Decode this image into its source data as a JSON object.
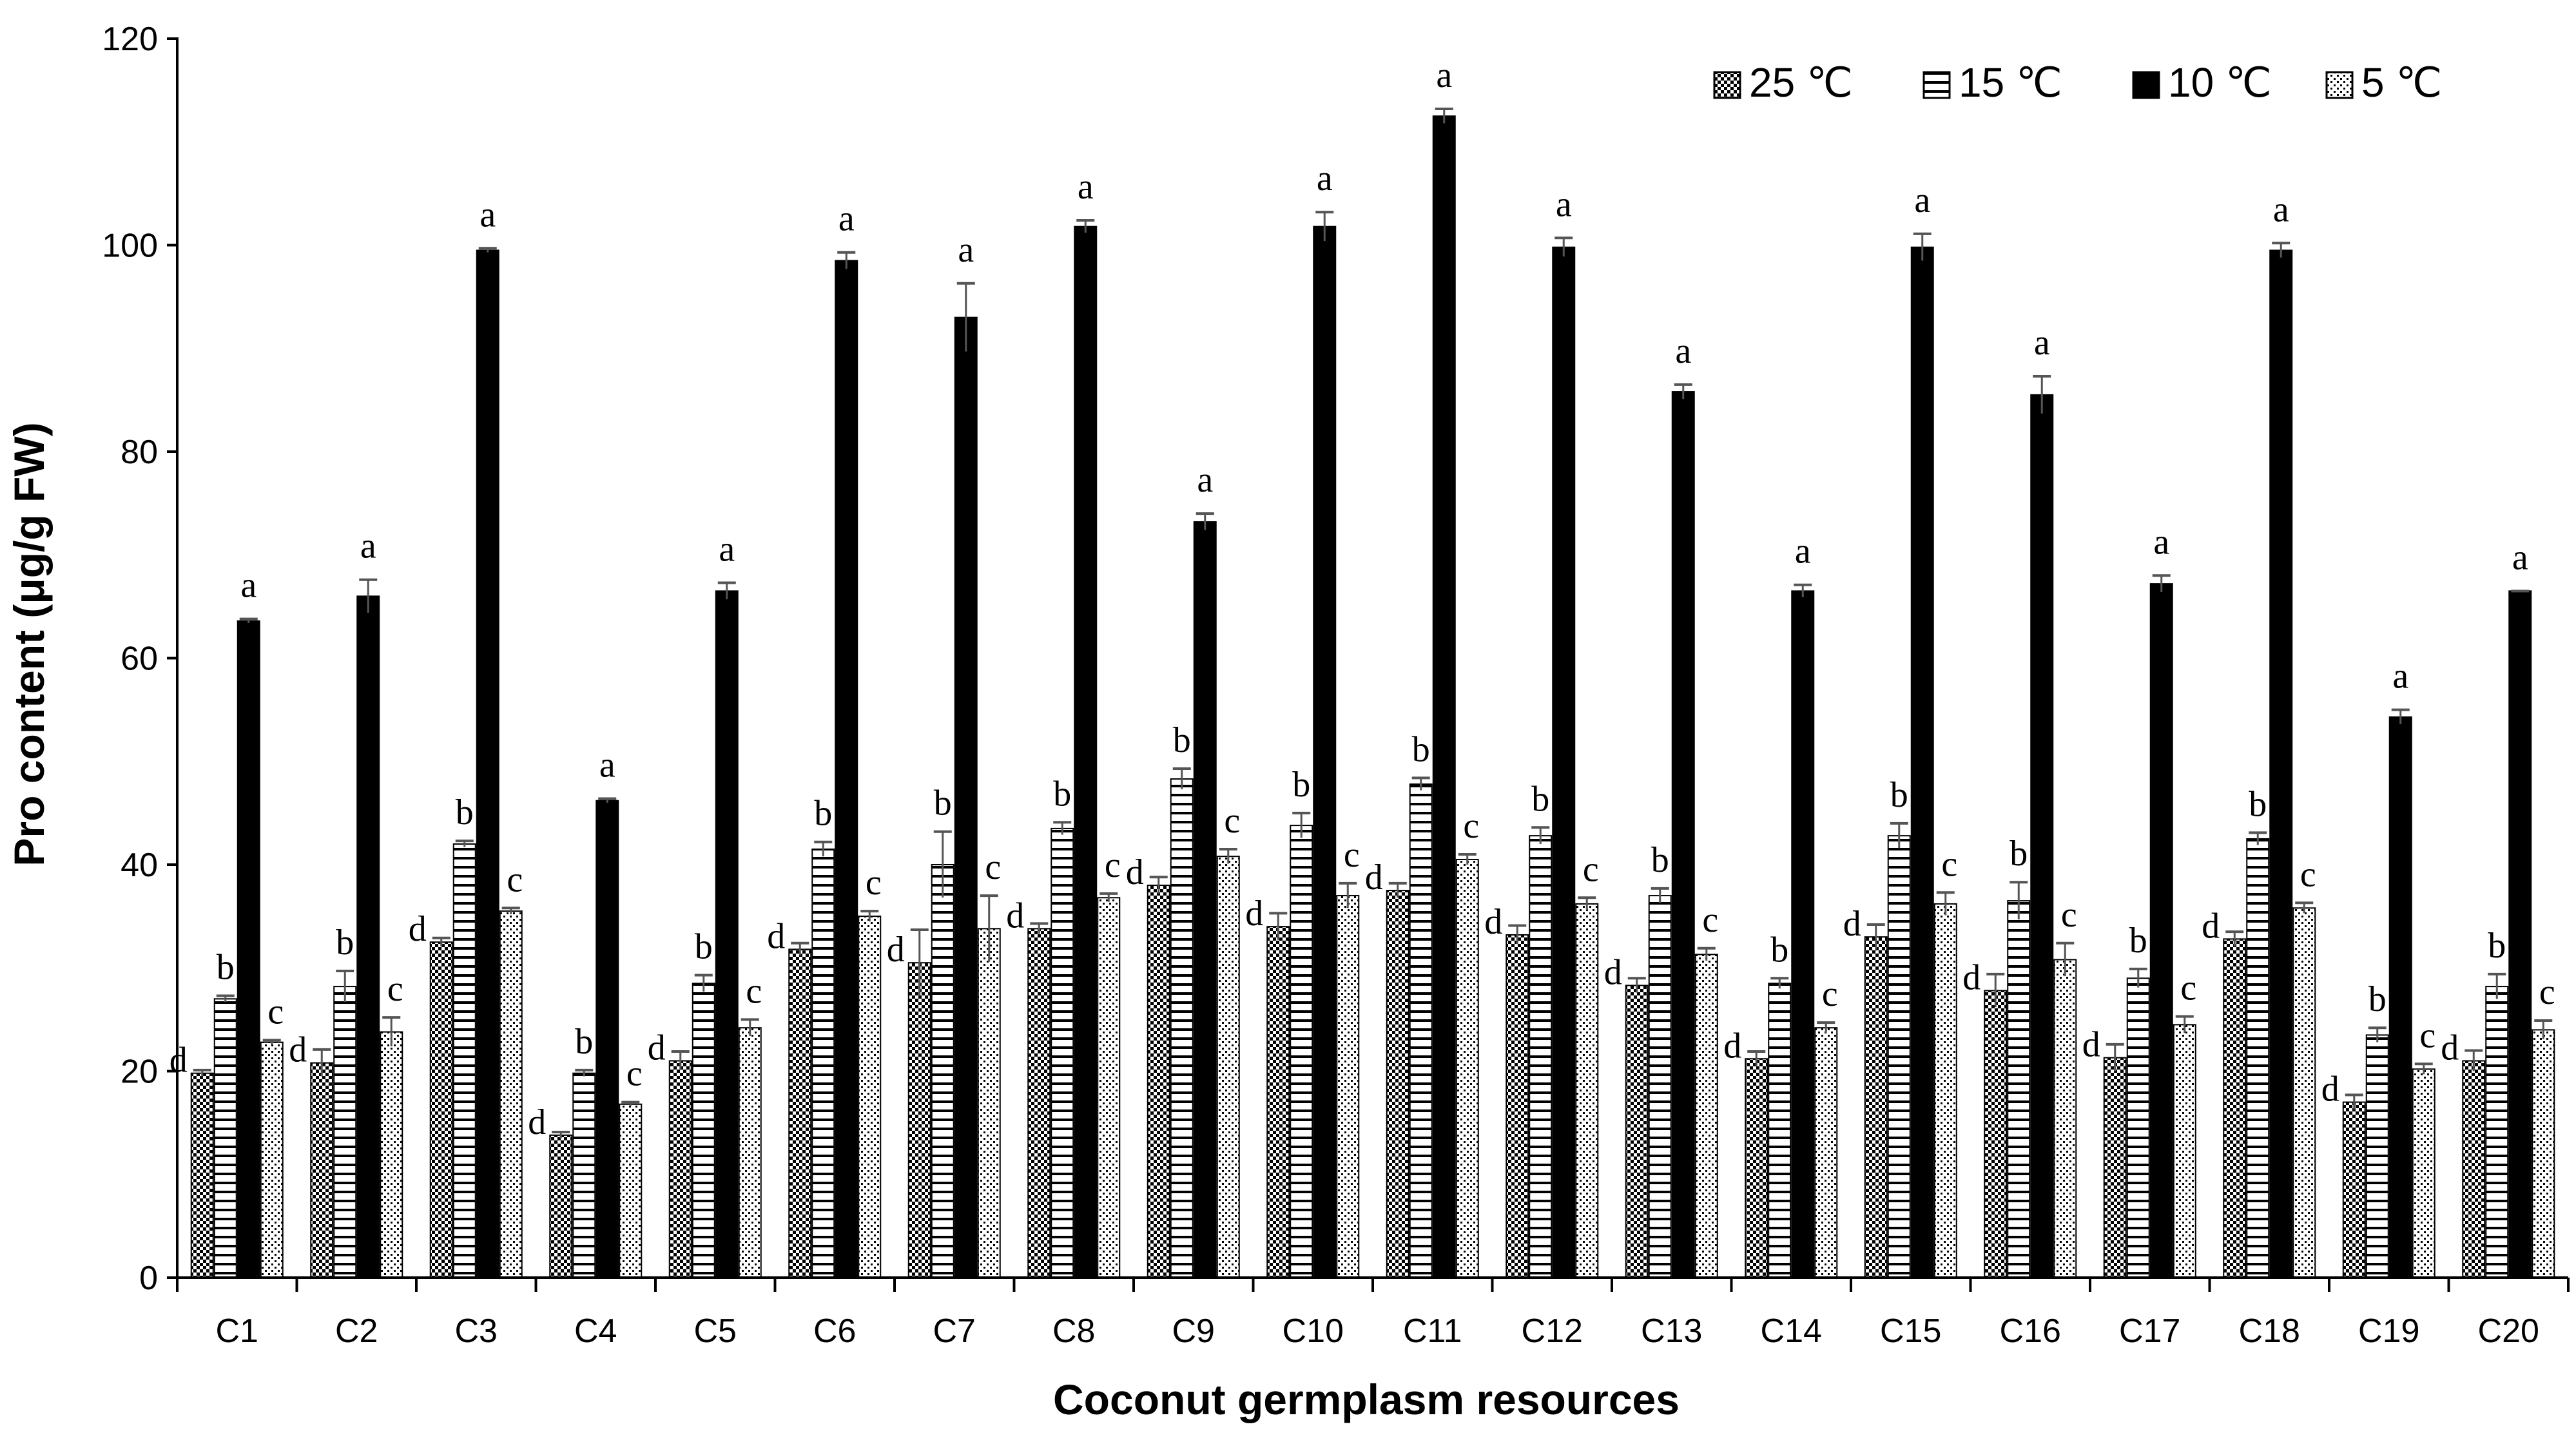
{
  "chart_data": {
    "type": "bar",
    "title": "",
    "xlabel": "Coconut germplasm resources",
    "ylabel": "Pro content (μg/g FW)",
    "ylim": [
      0,
      120
    ],
    "yticks": [
      0,
      20,
      40,
      60,
      80,
      100,
      120
    ],
    "grid": false,
    "legend_position": "top-right",
    "categories": [
      "C1",
      "C2",
      "C3",
      "C4",
      "C5",
      "C6",
      "C7",
      "C8",
      "C9",
      "C10",
      "C11",
      "C12",
      "C13",
      "C14",
      "C15",
      "C16",
      "C17",
      "C18",
      "C19",
      "C20"
    ],
    "series": [
      {
        "name": "25 ℃",
        "pattern": "checker",
        "values": [
          19.8,
          20.8,
          32.5,
          13.8,
          21.0,
          31.8,
          30.5,
          33.8,
          38.0,
          34.0,
          37.5,
          33.2,
          28.3,
          21.2,
          33.0,
          27.8,
          21.3,
          32.8,
          17.0,
          21.0
        ],
        "errors": [
          0.3,
          1.3,
          0.4,
          0.3,
          0.9,
          0.6,
          3.2,
          0.5,
          0.8,
          1.3,
          0.7,
          0.9,
          0.7,
          0.7,
          1.2,
          1.6,
          1.3,
          0.7,
          0.7,
          1.0
        ],
        "letters": [
          "d",
          "d",
          "d",
          "d",
          "d",
          "d",
          "d",
          "d",
          "d",
          "d",
          "d",
          "d",
          "d",
          "d",
          "d",
          "d",
          "d",
          "d",
          "d",
          "d"
        ]
      },
      {
        "name": "15 ℃",
        "pattern": "hlines",
        "values": [
          27.0,
          28.2,
          42.0,
          19.8,
          28.5,
          41.5,
          40.0,
          43.5,
          48.3,
          43.8,
          47.8,
          42.8,
          37.0,
          28.5,
          42.8,
          36.5,
          29.0,
          42.5,
          23.5,
          28.2
        ],
        "errors": [
          0.3,
          1.5,
          0.3,
          0.3,
          0.8,
          0.7,
          3.2,
          0.6,
          1.0,
          1.2,
          0.6,
          0.8,
          0.7,
          0.5,
          1.2,
          1.8,
          0.9,
          0.6,
          0.7,
          1.2
        ],
        "letters": [
          "b",
          "b",
          "b",
          "b",
          "b",
          "b",
          "b",
          "b",
          "b",
          "b",
          "b",
          "b",
          "b",
          "b",
          "b",
          "b",
          "b",
          "b",
          "b",
          "b"
        ]
      },
      {
        "name": "10 ℃",
        "pattern": "solid",
        "values": [
          63.6,
          66.0,
          99.5,
          46.2,
          66.5,
          98.5,
          93.0,
          101.8,
          73.2,
          101.8,
          112.5,
          99.8,
          85.8,
          66.5,
          99.8,
          85.5,
          67.2,
          99.5,
          54.3,
          66.5
        ],
        "errors": [
          0.2,
          1.6,
          0.2,
          0.2,
          0.8,
          0.8,
          3.3,
          0.6,
          0.8,
          1.4,
          0.7,
          0.9,
          0.7,
          0.6,
          1.3,
          1.8,
          0.8,
          0.7,
          0.7,
          0.0
        ],
        "letters": [
          "a",
          "a",
          "a",
          "a",
          "a",
          "a",
          "a",
          "a",
          "a",
          "a",
          "a",
          "a",
          "a",
          "a",
          "a",
          "a",
          "a",
          "a",
          "a",
          "a"
        ]
      },
      {
        "name": "5 ℃",
        "pattern": "dots",
        "values": [
          22.8,
          23.8,
          35.5,
          16.8,
          24.2,
          35.0,
          33.8,
          36.8,
          40.8,
          37.0,
          40.5,
          36.2,
          31.3,
          24.2,
          36.2,
          30.8,
          24.5,
          35.8,
          20.2,
          24.0
        ],
        "errors": [
          0.2,
          1.4,
          0.3,
          0.2,
          0.8,
          0.5,
          3.2,
          0.4,
          0.7,
          1.2,
          0.5,
          0.6,
          0.6,
          0.5,
          1.1,
          1.6,
          0.8,
          0.5,
          0.5,
          0.9
        ],
        "letters": [
          "c",
          "c",
          "c",
          "c",
          "c",
          "c",
          "c",
          "c",
          "c",
          "c",
          "c",
          "c",
          "c",
          "c",
          "c",
          "c",
          "c",
          "c",
          "c",
          "c"
        ]
      }
    ]
  }
}
